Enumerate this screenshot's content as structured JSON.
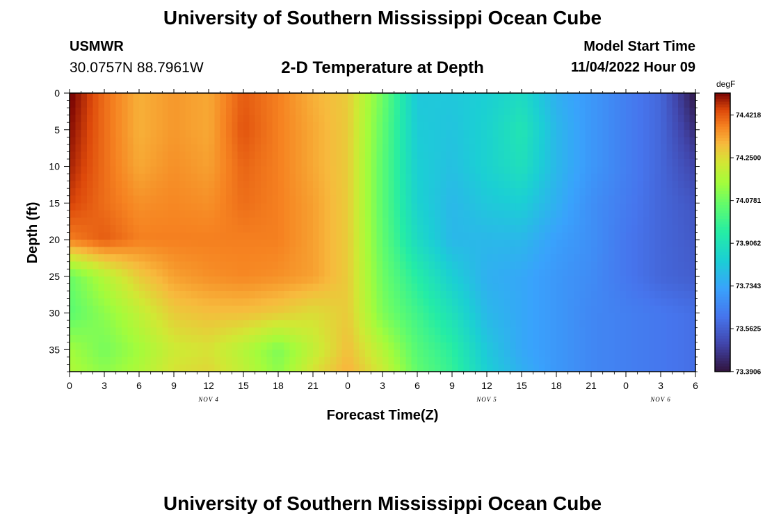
{
  "header": {
    "title": "University of Southern Mississippi Ocean Cube",
    "station_code": "USMWR",
    "station_coords": "30.0757N  88.7961W",
    "plot_title": "2-D Temperature at Depth",
    "model_start_label": "Model Start Time",
    "model_start_time": "11/04/2022 Hour 09"
  },
  "footer": {
    "title": "University of Southern Mississippi Ocean Cube"
  },
  "chart_data": {
    "type": "heatmap",
    "xlabel": "Forecast Time(Z)",
    "ylabel": "Depth (ft)",
    "x_range_hours": [
      0,
      54
    ],
    "y_range_ft": [
      0,
      38
    ],
    "y_inverted": true,
    "x_tick_labels": [
      "0",
      "3",
      "6",
      "9",
      "12",
      "15",
      "18",
      "21",
      "0",
      "3",
      "6",
      "9",
      "12",
      "15",
      "18",
      "21",
      "0",
      "3",
      "6"
    ],
    "y_tick_labels": [
      "0",
      "5",
      "10",
      "15",
      "20",
      "25",
      "30",
      "35"
    ],
    "y_tick_values": [
      0,
      5,
      10,
      15,
      20,
      25,
      30,
      35
    ],
    "day_labels": [
      {
        "label": "NOV 4",
        "hour": 12
      },
      {
        "label": "NOV 5",
        "hour": 36
      },
      {
        "label": "NOV 6",
        "hour": 51
      }
    ],
    "colorbar": {
      "units": "degF",
      "min": 73.39,
      "max": 74.51,
      "tick_labels": [
        "74.4218",
        "74.2500",
        "74.0781",
        "73.9062",
        "73.7343",
        "73.5625",
        "73.3906"
      ],
      "tick_values": [
        74.4218,
        74.25,
        74.0781,
        73.9062,
        73.7343,
        73.5625,
        73.3906
      ]
    },
    "grid_hours": [
      0,
      3,
      6,
      9,
      12,
      15,
      18,
      21,
      24,
      27,
      30,
      33,
      36,
      39,
      42,
      45,
      48,
      51,
      54
    ],
    "grid_depths": [
      0,
      5,
      10,
      15,
      20,
      25,
      30,
      35,
      38
    ],
    "values": [
      [
        74.52,
        74.4,
        74.32,
        74.35,
        74.33,
        74.42,
        74.38,
        74.32,
        74.28,
        74.08,
        73.82,
        73.82,
        73.84,
        73.88,
        73.76,
        73.7,
        73.64,
        73.58,
        73.4
      ],
      [
        74.5,
        74.4,
        74.32,
        74.35,
        74.33,
        74.43,
        74.38,
        74.33,
        74.28,
        74.06,
        73.83,
        73.81,
        73.85,
        73.92,
        73.78,
        73.7,
        73.64,
        73.58,
        73.45
      ],
      [
        74.48,
        74.4,
        74.33,
        74.36,
        74.34,
        74.41,
        74.38,
        74.33,
        74.28,
        74.05,
        73.84,
        73.8,
        73.85,
        73.9,
        73.78,
        73.7,
        73.64,
        73.58,
        73.5
      ],
      [
        74.45,
        74.4,
        74.36,
        74.37,
        74.36,
        74.4,
        74.38,
        74.34,
        74.28,
        74.05,
        73.85,
        73.78,
        73.82,
        73.84,
        73.76,
        73.68,
        73.63,
        73.58,
        73.54
      ],
      [
        74.38,
        74.42,
        74.38,
        74.38,
        74.38,
        74.38,
        74.38,
        74.34,
        74.28,
        74.06,
        73.88,
        73.78,
        73.78,
        73.78,
        73.72,
        73.68,
        73.62,
        73.58,
        73.55
      ],
      [
        74.07,
        74.18,
        74.28,
        74.34,
        74.36,
        74.37,
        74.36,
        74.34,
        74.28,
        74.08,
        73.95,
        73.84,
        73.76,
        73.74,
        73.7,
        73.67,
        73.62,
        73.58,
        73.56
      ],
      [
        74.05,
        74.12,
        74.2,
        74.28,
        74.3,
        74.3,
        74.28,
        74.25,
        74.28,
        74.1,
        74.0,
        73.9,
        73.78,
        73.74,
        73.7,
        73.66,
        73.64,
        73.62,
        73.6
      ],
      [
        74.15,
        74.09,
        74.15,
        74.22,
        74.24,
        74.18,
        74.1,
        74.2,
        74.3,
        74.18,
        74.04,
        73.96,
        73.82,
        73.74,
        73.7,
        73.66,
        73.64,
        73.62,
        73.6
      ],
      [
        74.17,
        74.12,
        74.17,
        74.24,
        74.26,
        74.2,
        74.12,
        74.24,
        74.32,
        74.22,
        74.06,
        73.98,
        73.84,
        73.76,
        73.7,
        73.66,
        73.64,
        73.62,
        73.6
      ]
    ]
  }
}
